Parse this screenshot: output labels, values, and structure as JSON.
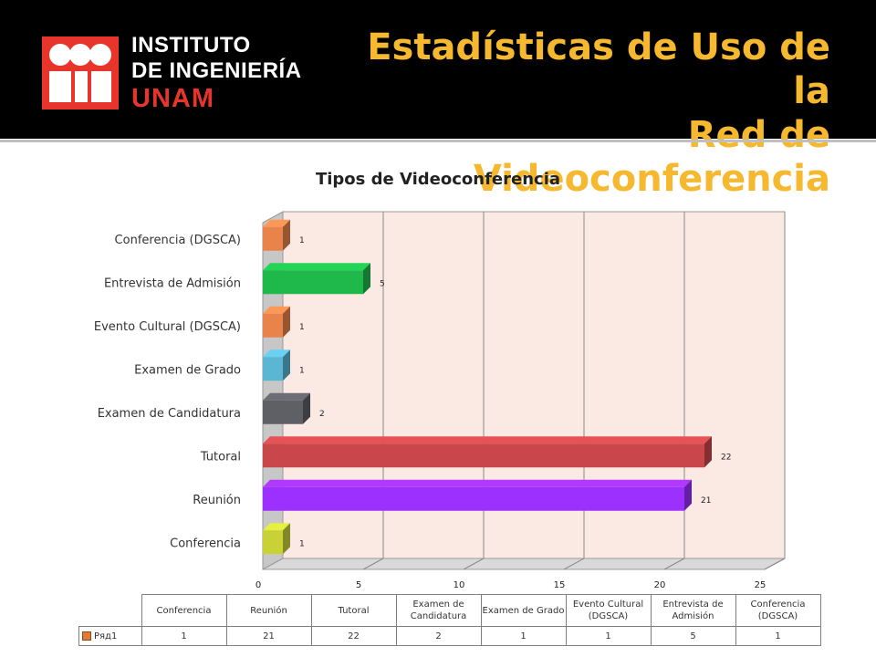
{
  "header": {
    "org_line1": "INSTITUTO",
    "org_line2": "DE INGENIERÍA",
    "org_line3": "UNAM",
    "title_line1": "Estadísticas de Uso de la",
    "title_line2": "Red de Videoconferencia",
    "logo": "instituto-ingenieria-logo",
    "colors": {
      "title": "#f5b82e",
      "logo_red": "#e8352b",
      "background": "#000000"
    }
  },
  "chart_data": {
    "type": "bar",
    "orientation": "horizontal",
    "title": "Tipos de Videoconferencia",
    "categories": [
      "Conferencia",
      "Reunión",
      "Tutoral",
      "Examen de Candidatura",
      "Examen de Grado",
      "Evento Cultural (DGSCA)",
      "Entrevista de Admisión",
      "Conferencia (DGSCA)"
    ],
    "series": [
      {
        "name": "Ряд1",
        "values": [
          1,
          21,
          22,
          2,
          1,
          1,
          5,
          1
        ]
      }
    ],
    "bar_colors": [
      "#c8d136",
      "#9b30ff",
      "#c9474a",
      "#5f5f66",
      "#5bb6d3",
      "#e8834c",
      "#1fb84b",
      "#e8834c"
    ],
    "xlim": [
      0,
      25
    ],
    "x_ticks": [
      "0",
      "5",
      "10",
      "15",
      "20",
      "25"
    ],
    "grid": true,
    "legend": "bottom-table",
    "data_table": {
      "headers": [
        "Conferencia",
        "Reunión",
        "Tutoral",
        "Examen de Candidatura",
        "Examen de Grado",
        "Evento Cultural (DGSCA)",
        "Entrevista de Admisión",
        "Conferencia (DGSCA)"
      ],
      "series_label": "Ряд1",
      "values": [
        "1",
        "21",
        "22",
        "2",
        "1",
        "1",
        "5",
        "1"
      ]
    }
  }
}
